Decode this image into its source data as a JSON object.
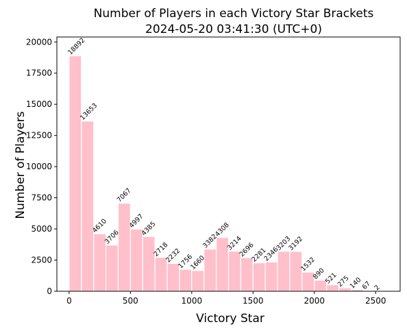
{
  "chart_data": {
    "type": "bar",
    "title": "Number of Players in each Victory Star Brackets",
    "subtitle": "2024-05-20 03:41:30 (UTC+0)",
    "xlabel": "Victory Star",
    "ylabel": "Number of Players",
    "xlim": [
      -100,
      2700
    ],
    "ylim": [
      0,
      20400
    ],
    "xticks": [
      0,
      500,
      1000,
      1500,
      2000,
      2500
    ],
    "yticks": [
      0,
      2500,
      5000,
      7500,
      10000,
      12500,
      15000,
      17500,
      20000
    ],
    "bin_width": 100,
    "x": [
      0,
      100,
      200,
      300,
      400,
      500,
      600,
      700,
      800,
      900,
      1000,
      1100,
      1200,
      1300,
      1400,
      1500,
      1600,
      1700,
      1800,
      1900,
      2000,
      2100,
      2200,
      2300,
      2400,
      2500
    ],
    "values": [
      18892,
      13653,
      4610,
      3706,
      7067,
      4997,
      4385,
      2718,
      2232,
      1756,
      1660,
      3382,
      4308,
      3214,
      2696,
      2281,
      2346,
      3203,
      3192,
      1532,
      890,
      521,
      275,
      140,
      67,
      2
    ],
    "bar_color": "#ffc0cb",
    "bar_edge_color": "#ffffff",
    "grid": false,
    "legend": "none"
  }
}
